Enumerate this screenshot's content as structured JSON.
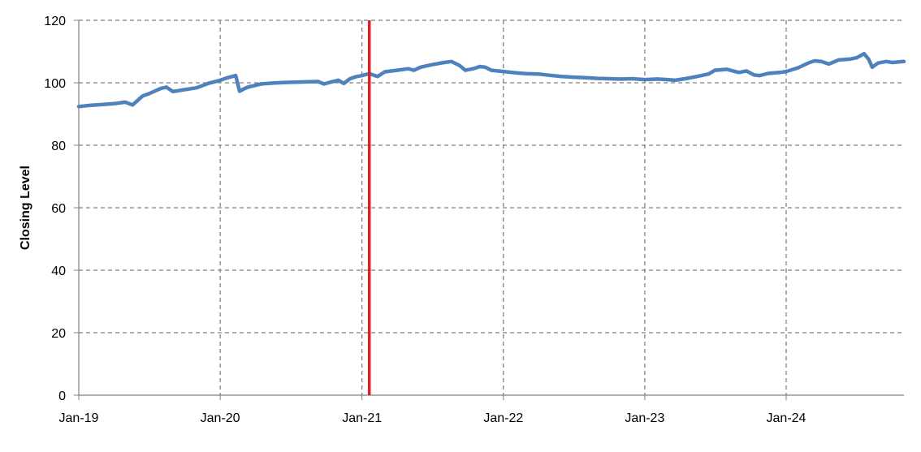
{
  "chart_data": {
    "type": "line",
    "title": "",
    "xlabel": "",
    "ylabel": "Closing Level",
    "ylim": [
      0,
      120
    ],
    "yticks": [
      0,
      20,
      40,
      60,
      80,
      100,
      120
    ],
    "xlim": [
      "2019-01-01",
      "2024-10-31"
    ],
    "xticks": [
      {
        "date": "2019-01-01",
        "label": "Jan-19"
      },
      {
        "date": "2020-01-01",
        "label": "Jan-20"
      },
      {
        "date": "2021-01-01",
        "label": "Jan-21"
      },
      {
        "date": "2022-01-01",
        "label": "Jan-22"
      },
      {
        "date": "2023-01-01",
        "label": "Jan-23"
      },
      {
        "date": "2024-01-01",
        "label": "Jan-24"
      }
    ],
    "grid": {
      "horizontal": true,
      "vertical": true,
      "style": "dashed"
    },
    "colors": {
      "series": "#4F81BD",
      "marker_line": "#E02020",
      "grid": "#808080"
    },
    "marker_line": {
      "date": "2021-01-20"
    },
    "series": [
      {
        "x": [
          "2019-01-01",
          "2019-02-01",
          "2019-03-01",
          "2019-04-01",
          "2019-05-01",
          "2019-05-20",
          "2019-06-15",
          "2019-07-01",
          "2019-08-01",
          "2019-08-15",
          "2019-09-01",
          "2019-10-01",
          "2019-11-01",
          "2019-12-01",
          "2020-01-01",
          "2020-01-20",
          "2020-02-10",
          "2020-02-20",
          "2020-03-05",
          "2020-03-15",
          "2020-03-25",
          "2020-04-15",
          "2020-05-15",
          "2020-06-15",
          "2020-07-15",
          "2020-08-15",
          "2020-09-10",
          "2020-09-25",
          "2020-10-15",
          "2020-11-01",
          "2020-11-15",
          "2020-12-01",
          "2020-12-15",
          "2021-01-01",
          "2021-01-20",
          "2021-02-10",
          "2021-03-01",
          "2021-04-01",
          "2021-05-01",
          "2021-05-15",
          "2021-06-01",
          "2021-07-01",
          "2021-08-01",
          "2021-08-20",
          "2021-09-10",
          "2021-09-25",
          "2021-10-15",
          "2021-11-01",
          "2021-11-15",
          "2021-12-01",
          "2022-01-01",
          "2022-02-01",
          "2022-03-01",
          "2022-04-01",
          "2022-05-01",
          "2022-06-01",
          "2022-07-01",
          "2022-08-01",
          "2022-09-01",
          "2022-10-01",
          "2022-11-01",
          "2022-12-01",
          "2023-01-01",
          "2023-02-01",
          "2023-03-01",
          "2023-03-20",
          "2023-04-15",
          "2023-05-15",
          "2023-06-15",
          "2023-07-01",
          "2023-08-01",
          "2023-09-01",
          "2023-09-20",
          "2023-10-10",
          "2023-10-25",
          "2023-11-15",
          "2023-12-15",
          "2024-01-01",
          "2024-02-01",
          "2024-03-01",
          "2024-03-15",
          "2024-04-01",
          "2024-04-20",
          "2024-05-15",
          "2024-06-15",
          "2024-07-01",
          "2024-07-20",
          "2024-08-01",
          "2024-08-10",
          "2024-08-25",
          "2024-09-15",
          "2024-10-01",
          "2024-10-31"
        ],
        "y": [
          92.4,
          92.8,
          93.0,
          93.3,
          93.8,
          92.9,
          95.8,
          96.5,
          98.2,
          98.6,
          97.2,
          97.8,
          98.4,
          99.8,
          100.8,
          101.6,
          102.3,
          97.3,
          98.2,
          98.7,
          99.0,
          99.6,
          99.9,
          100.1,
          100.2,
          100.3,
          100.4,
          99.6,
          100.3,
          100.8,
          99.8,
          101.3,
          101.9,
          102.3,
          102.9,
          102.0,
          103.5,
          104.0,
          104.5,
          104.0,
          105.0,
          105.8,
          106.5,
          106.8,
          105.5,
          104.0,
          104.5,
          105.2,
          105.0,
          104.0,
          103.6,
          103.2,
          102.9,
          102.8,
          102.4,
          102.0,
          101.8,
          101.6,
          101.4,
          101.3,
          101.2,
          101.3,
          101.0,
          101.2,
          101.0,
          100.8,
          101.3,
          102.0,
          102.8,
          104.0,
          104.3,
          103.3,
          103.8,
          102.5,
          102.3,
          103.0,
          103.3,
          103.6,
          104.8,
          106.5,
          107.0,
          106.8,
          106.0,
          107.3,
          107.6,
          108.0,
          109.3,
          107.5,
          105.0,
          106.3,
          106.8,
          106.5,
          106.8
        ]
      }
    ]
  }
}
